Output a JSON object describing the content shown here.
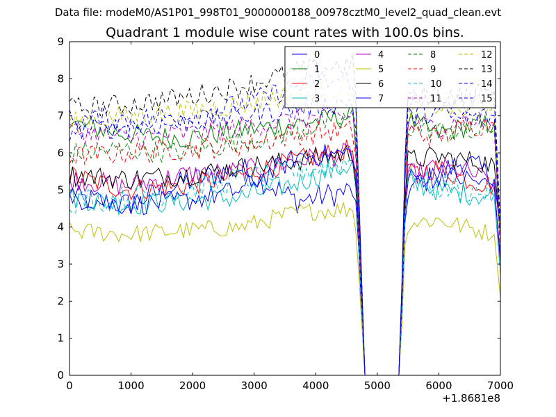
{
  "figure": {
    "suptitle": "Data file: modeM0/AS1P01_998T01_9000000188_00978cztM0_level2_quad_clean.evt",
    "title": "Quadrant 1 module wise count rates with 100.0s bins.",
    "offset_label": "+1.8681e8"
  },
  "chart_data": {
    "type": "line",
    "title": "Quadrant 1 module wise count rates with 100.0s bins.",
    "xlabel": "",
    "ylabel": "",
    "x_offset": 186810000,
    "xlim": [
      0,
      7000
    ],
    "ylim": [
      0,
      9
    ],
    "xticks": [
      0,
      1000,
      2000,
      3000,
      4000,
      5000,
      6000,
      7000
    ],
    "yticks": [
      0,
      1,
      2,
      3,
      4,
      5,
      6,
      7,
      8,
      9
    ],
    "grid": false,
    "legend_placement": "top-right",
    "x_start": 0,
    "x_step": 50,
    "n_points": 141,
    "gap": {
      "fall_start": 4630,
      "zero_start": 4800,
      "zero_end": 5350,
      "rise_end": 5500,
      "final_drop_start": 6900,
      "final_drop_end": 7000
    },
    "series": [
      {
        "name": "0",
        "color": "#0000ff",
        "dash": "solid",
        "pre": [
          4.8,
          4.6,
          5.2,
          5.6,
          4.7,
          5.0
        ],
        "post": [
          5.0,
          5.4,
          5.8,
          5.3
        ],
        "amp": 0.35,
        "end": 3.9
      },
      {
        "name": "1",
        "color": "#008000",
        "dash": "solid",
        "pre": [
          6.8,
          6.5,
          6.4,
          6.6,
          6.8,
          7.0
        ],
        "post": [
          6.9,
          6.5,
          6.7,
          6.8
        ],
        "amp": 0.3,
        "end": 3.7
      },
      {
        "name": "2",
        "color": "#ff0000",
        "dash": "solid",
        "pre": [
          5.4,
          5.0,
          5.1,
          5.4,
          5.8,
          6.1
        ],
        "post": [
          5.4,
          5.6,
          5.3,
          5.1
        ],
        "amp": 0.3,
        "end": 3.2
      },
      {
        "name": "3",
        "color": "#00bfbf",
        "dash": "solid",
        "pre": [
          4.8,
          4.6,
          4.7,
          4.8,
          5.2,
          5.7
        ],
        "post": [
          5.2,
          5.0,
          4.9,
          4.8
        ],
        "amp": 0.3,
        "end": 2.8
      },
      {
        "name": "4",
        "color": "#bf00bf",
        "dash": "solid",
        "pre": [
          5.3,
          5.1,
          5.4,
          5.5,
          5.8,
          6.0
        ],
        "post": [
          5.4,
          5.6,
          5.5,
          5.2
        ],
        "amp": 0.3,
        "end": 3.0
      },
      {
        "name": "5",
        "color": "#bfbf00",
        "dash": "solid",
        "pre": [
          3.9,
          3.8,
          3.9,
          4.0,
          4.4,
          4.5
        ],
        "post": [
          4.1,
          4.2,
          4.0,
          3.8
        ],
        "amp": 0.25,
        "end": 2.1
      },
      {
        "name": "6",
        "color": "#000000",
        "dash": "solid",
        "pre": [
          5.4,
          5.3,
          5.4,
          5.6,
          5.8,
          6.0
        ],
        "post": [
          5.8,
          5.9,
          5.8,
          5.7
        ],
        "amp": 0.3,
        "end": 3.8
      },
      {
        "name": "7",
        "color": "#0000ff",
        "dash": "solid",
        "pre": [
          4.8,
          4.6,
          4.7,
          5.0,
          5.9,
          6.0
        ],
        "post": [
          5.3,
          5.4,
          5.3,
          5.1
        ],
        "amp": 0.3,
        "end": 3.1
      },
      {
        "name": "8",
        "color": "#008000",
        "dash": "dashed",
        "pre": [
          6.0,
          6.1,
          6.0,
          6.3,
          6.6,
          7.0
        ],
        "post": [
          6.7,
          6.6,
          6.5,
          6.6
        ],
        "amp": 0.3,
        "end": 3.5
      },
      {
        "name": "9",
        "color": "#ff0000",
        "dash": "dashed",
        "pre": [
          5.9,
          6.0,
          6.1,
          6.2,
          6.5,
          6.6
        ],
        "post": [
          6.6,
          6.4,
          6.7,
          6.8
        ],
        "amp": 0.3,
        "end": 3.4
      },
      {
        "name": "10",
        "color": "#00bfbf",
        "dash": "dashed",
        "pre": [
          4.7,
          4.8,
          5.0,
          5.3,
          5.5,
          5.8
        ],
        "post": [
          5.3,
          5.1,
          5.0,
          4.9
        ],
        "amp": 0.35,
        "end": 2.7
      },
      {
        "name": "11",
        "color": "#bf00bf",
        "dash": "dashed",
        "pre": [
          6.6,
          6.4,
          6.5,
          6.7,
          6.9,
          7.0
        ],
        "post": [
          6.8,
          6.7,
          6.9,
          6.8
        ],
        "amp": 0.3,
        "end": 3.3
      },
      {
        "name": "12",
        "color": "#bfbf00",
        "dash": "dashed",
        "pre": [
          6.8,
          7.0,
          7.1,
          7.3,
          7.6,
          7.8
        ],
        "post": [
          7.2,
          7.3,
          7.1,
          7.4
        ],
        "amp": 0.3,
        "end": 3.6
      },
      {
        "name": "13",
        "color": "#000000",
        "dash": "dashed",
        "pre": [
          7.2,
          7.3,
          7.5,
          7.8,
          8.2,
          8.4
        ],
        "post": [
          7.4,
          7.6,
          7.5,
          7.7
        ],
        "amp": 0.3,
        "end": 4.0
      },
      {
        "name": "14",
        "color": "#0000ff",
        "dash": "dashed",
        "pre": [
          6.9,
          6.9,
          7.0,
          7.3,
          7.8,
          8.0
        ],
        "post": [
          7.6,
          7.4,
          7.3,
          7.5
        ],
        "amp": 0.3,
        "end": 3.9
      },
      {
        "name": "15",
        "color": "#0000ff",
        "dash": "dashed",
        "pre": [
          6.6,
          6.7,
          6.8,
          7.0,
          7.2,
          7.4
        ],
        "post": [
          7.0,
          7.1,
          6.9,
          7.0
        ],
        "amp": 0.3,
        "end": 3.7
      }
    ]
  }
}
